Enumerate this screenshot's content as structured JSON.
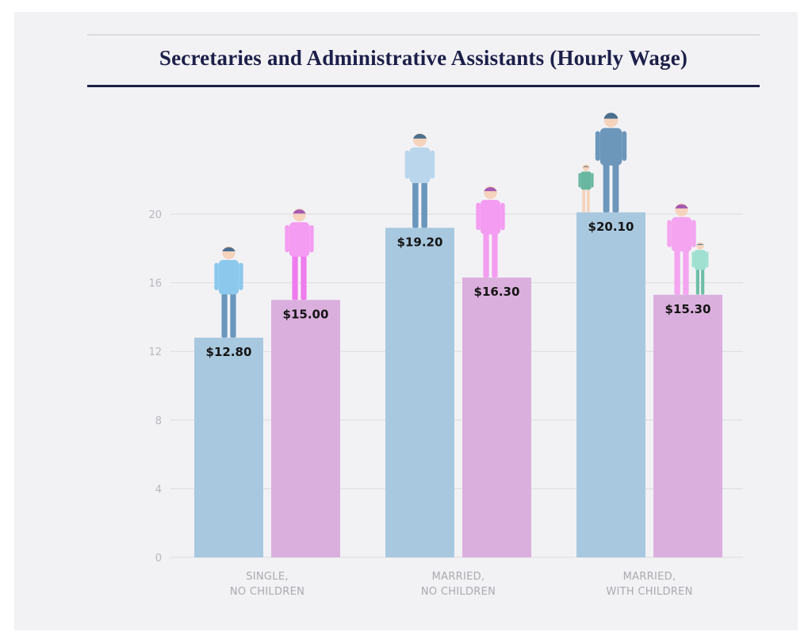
{
  "chart_data": {
    "type": "bar",
    "title": "Secretaries and Administrative Assistants (Hourly Wage)",
    "xlabel": "",
    "ylabel": "",
    "ylim": [
      0,
      20
    ],
    "yticks": [
      0,
      4,
      8,
      12,
      16,
      20
    ],
    "grid": true,
    "categories": [
      [
        "SINGLE,",
        "NO CHILDREN"
      ],
      [
        "MARRIED,",
        "NO CHILDREN"
      ],
      [
        "MARRIED,",
        "WITH CHILDREN"
      ]
    ],
    "series": [
      {
        "values": [
          12.8,
          19.2,
          20.1
        ],
        "labels": [
          "$12.80",
          "$19.20",
          "$20.10"
        ],
        "color": "#a8c8df"
      },
      {
        "values": [
          15.0,
          16.3,
          15.3
        ],
        "labels": [
          "$15.00",
          "$16.30",
          "$15.30"
        ],
        "color": "#dbafdd"
      }
    ]
  },
  "colors": {
    "title": "#1d1f4a",
    "background": "#f2f2f5",
    "grid": "#dcdce0"
  }
}
